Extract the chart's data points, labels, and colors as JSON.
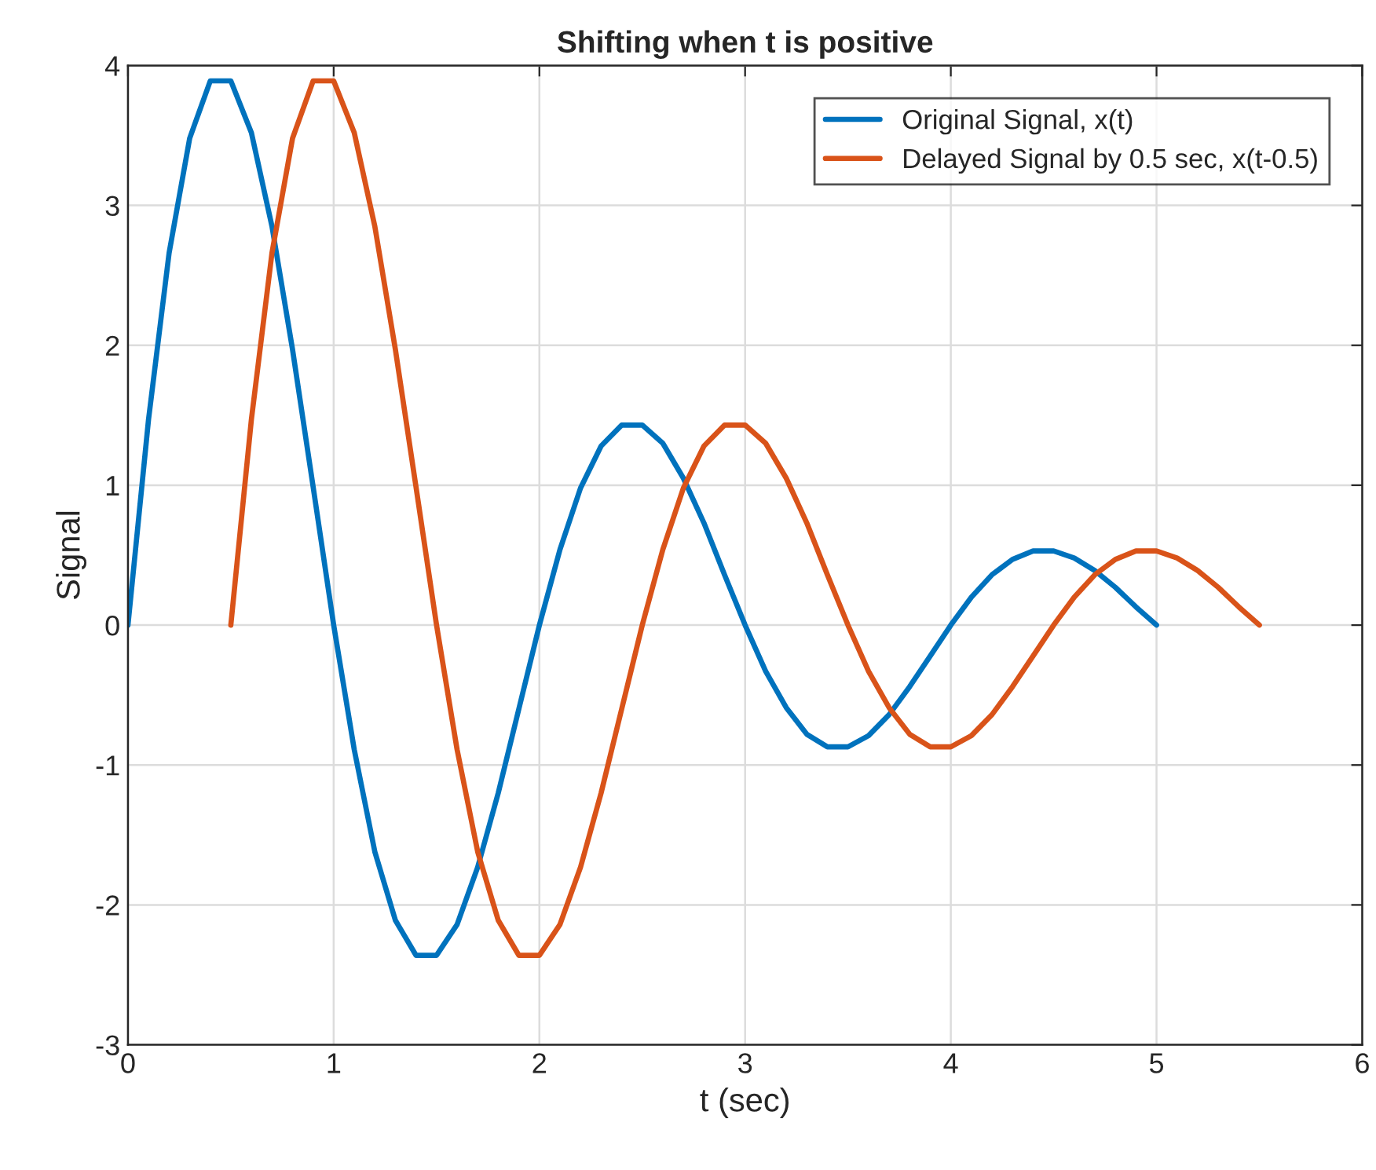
{
  "chart_data": {
    "type": "line",
    "title": "Shifting when t is positive",
    "xlabel": "t (sec)",
    "ylabel": "Signal",
    "xlim": [
      0,
      6
    ],
    "ylim": [
      -3,
      4
    ],
    "xticks": [
      0,
      1,
      2,
      3,
      4,
      5,
      6
    ],
    "yticks": [
      -3,
      -2,
      -1,
      0,
      1,
      2,
      3,
      4
    ],
    "grid": true,
    "legend": "top right",
    "line_style": "solid",
    "marker": "none",
    "series": [
      {
        "name": "Original Signal, x(t)",
        "color": "#0072bd",
        "x": [
          0,
          0.1,
          0.2,
          0.3,
          0.4,
          0.5,
          0.6,
          0.7,
          0.8,
          0.9,
          1,
          1.1,
          1.2,
          1.3,
          1.4,
          1.5,
          1.6,
          1.7,
          1.8,
          1.9,
          2,
          2.1,
          2.2,
          2.3,
          2.4,
          2.5,
          2.6,
          2.7,
          2.8,
          2.9,
          3,
          3.1,
          3.2,
          3.3,
          3.4,
          3.5,
          3.6,
          3.7,
          3.8,
          3.9,
          4,
          4.1,
          4.2,
          4.3,
          4.4,
          4.5,
          4.6,
          4.7,
          4.8,
          4.9,
          5
        ],
        "values": [
          0,
          1.47,
          2.66,
          3.48,
          3.89,
          3.89,
          3.52,
          2.85,
          1.97,
          0.99,
          0,
          -0.89,
          -1.62,
          -2.11,
          -2.36,
          -2.36,
          -2.14,
          -1.73,
          -1.2,
          -0.6,
          0,
          0.54,
          0.98,
          1.28,
          1.43,
          1.43,
          1.3,
          1.05,
          0.73,
          0.36,
          0,
          -0.33,
          -0.59,
          -0.78,
          -0.87,
          -0.87,
          -0.79,
          -0.64,
          -0.44,
          -0.22,
          0,
          0.2,
          0.36,
          0.47,
          0.53,
          0.53,
          0.48,
          0.39,
          0.27,
          0.13,
          0
        ]
      },
      {
        "name": "Delayed Signal by 0.5 sec, x(t-0.5)",
        "color": "#d95319",
        "x": [
          0.5,
          0.6,
          0.7,
          0.8,
          0.9,
          1,
          1.1,
          1.2,
          1.3,
          1.4,
          1.5,
          1.6,
          1.7,
          1.8,
          1.9,
          2,
          2.1,
          2.2,
          2.3,
          2.4,
          2.5,
          2.6,
          2.7,
          2.8,
          2.9,
          3,
          3.1,
          3.2,
          3.3,
          3.4,
          3.5,
          3.6,
          3.7,
          3.8,
          3.9,
          4,
          4.1,
          4.2,
          4.3,
          4.4,
          4.5,
          4.6,
          4.7,
          4.8,
          4.9,
          5,
          5.1,
          5.2,
          5.3,
          5.4,
          5.5
        ],
        "values": [
          0,
          1.47,
          2.66,
          3.48,
          3.89,
          3.89,
          3.52,
          2.85,
          1.97,
          0.99,
          0,
          -0.89,
          -1.62,
          -2.11,
          -2.36,
          -2.36,
          -2.14,
          -1.73,
          -1.2,
          -0.6,
          0,
          0.54,
          0.98,
          1.28,
          1.43,
          1.43,
          1.3,
          1.05,
          0.73,
          0.36,
          0,
          -0.33,
          -0.59,
          -0.78,
          -0.87,
          -0.87,
          -0.79,
          -0.64,
          -0.44,
          -0.22,
          0,
          0.2,
          0.36,
          0.47,
          0.53,
          0.53,
          0.48,
          0.39,
          0.27,
          0.13,
          0
        ]
      }
    ]
  }
}
